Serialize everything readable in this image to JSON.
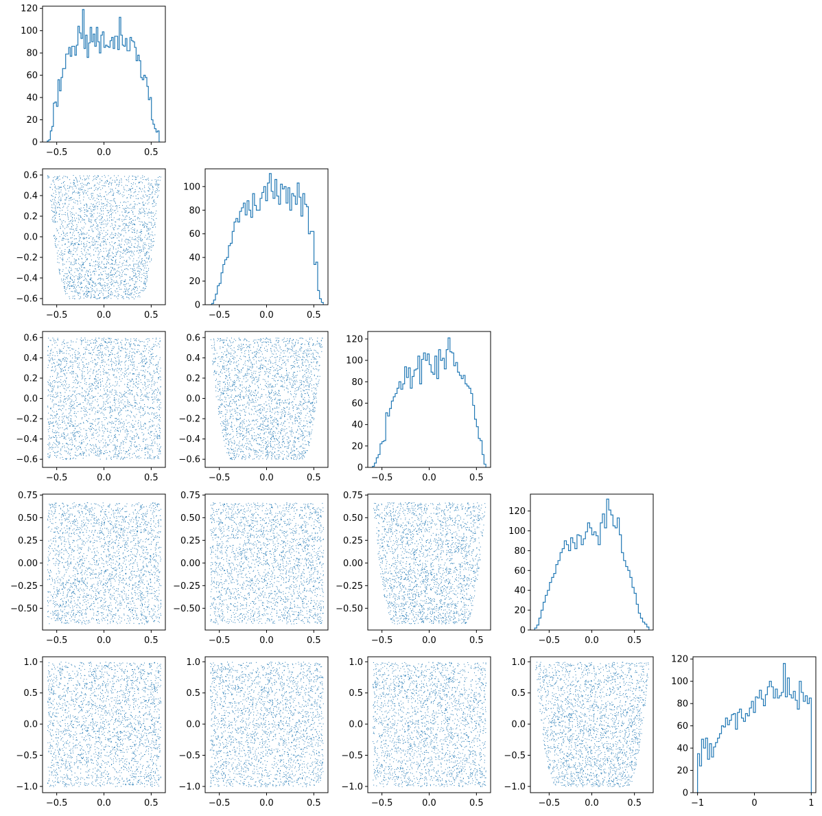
{
  "style": {
    "line_color": "#1f77b4",
    "point_color": "#1f77b4",
    "axes_color": "#000000",
    "background": "#ffffff"
  },
  "chart_data": [
    {
      "type": "histogram",
      "row": 0,
      "col": 0,
      "xlim": [
        -0.65,
        0.65
      ],
      "ylim": [
        0,
        122
      ],
      "xticks": [
        -0.5,
        0.0,
        0.5
      ],
      "yticks": [
        0,
        20,
        40,
        60,
        80,
        100,
        120
      ],
      "x_start": -0.6,
      "x_end": 0.6,
      "counts": [
        1,
        2,
        10,
        14,
        35,
        36,
        32,
        56,
        46,
        58,
        66,
        66,
        79,
        79,
        85,
        77,
        86,
        86,
        78,
        87,
        104,
        98,
        93,
        119,
        84,
        96,
        76,
        89,
        103,
        90,
        97,
        86,
        103,
        90,
        80,
        96,
        99,
        85,
        87,
        86,
        85,
        91,
        94,
        84,
        95,
        95,
        83,
        112,
        96,
        87,
        86,
        93,
        82,
        82,
        94,
        91,
        90,
        85,
        73,
        78,
        73,
        58,
        56,
        60,
        58,
        50,
        38,
        40,
        20,
        16,
        12,
        9,
        10,
        0
      ]
    },
    {
      "type": "histogram",
      "row": 1,
      "col": 1,
      "xlim": [
        -0.65,
        0.65
      ],
      "ylim": [
        0,
        115
      ],
      "xticks": [
        -0.5,
        0.0,
        0.5
      ],
      "yticks": [
        0,
        20,
        40,
        60,
        80,
        100
      ],
      "x_start": -0.6,
      "x_end": 0.6,
      "counts": [
        0,
        1,
        4,
        9,
        16,
        18,
        27,
        34,
        38,
        40,
        50,
        52,
        62,
        70,
        73,
        70,
        79,
        82,
        86,
        76,
        88,
        80,
        74,
        94,
        84,
        80,
        80,
        90,
        95,
        100,
        88,
        103,
        111,
        96,
        90,
        106,
        92,
        85,
        102,
        98,
        100,
        86,
        99,
        80,
        94,
        92,
        85,
        103,
        91,
        75,
        94,
        85,
        83,
        60,
        62,
        62,
        34,
        36,
        12,
        5,
        2
      ]
    },
    {
      "type": "histogram",
      "row": 2,
      "col": 2,
      "xlim": [
        -0.65,
        0.65
      ],
      "ylim": [
        0,
        127
      ],
      "xticks": [
        -0.5,
        0.0,
        0.5
      ],
      "yticks": [
        0,
        20,
        40,
        60,
        80,
        100,
        120
      ],
      "x_start": -0.6,
      "x_end": 0.6,
      "counts": [
        1,
        4,
        9,
        12,
        22,
        24,
        25,
        51,
        48,
        55,
        62,
        66,
        69,
        74,
        80,
        73,
        78,
        94,
        84,
        93,
        74,
        85,
        91,
        92,
        104,
        78,
        101,
        107,
        100,
        106,
        96,
        89,
        87,
        104,
        83,
        110,
        100,
        102,
        92,
        110,
        121,
        108,
        107,
        95,
        98,
        89,
        86,
        83,
        86,
        78,
        76,
        74,
        69,
        58,
        45,
        38,
        27,
        25,
        12,
        3
      ]
    },
    {
      "type": "histogram",
      "row": 3,
      "col": 3,
      "xlim": [
        -0.72,
        0.72
      ],
      "ylim": [
        0,
        137
      ],
      "xticks": [
        -0.5,
        0.0,
        0.5
      ],
      "yticks": [
        0,
        20,
        40,
        60,
        80,
        100,
        120
      ],
      "x_start": -0.67,
      "x_end": 0.67,
      "counts": [
        2,
        5,
        12,
        20,
        28,
        35,
        40,
        48,
        53,
        57,
        66,
        70,
        78,
        82,
        90,
        86,
        80,
        93,
        88,
        82,
        96,
        95,
        86,
        92,
        99,
        108,
        103,
        96,
        99,
        95,
        86,
        108,
        117,
        103,
        132,
        121,
        116,
        105,
        103,
        113,
        96,
        78,
        70,
        64,
        60,
        53,
        43,
        37,
        26,
        17,
        12,
        8,
        6,
        3
      ]
    },
    {
      "type": "histogram",
      "row": 4,
      "col": 4,
      "xlim": [
        -1.08,
        1.08
      ],
      "ylim": [
        0,
        122
      ],
      "xticks": [
        -1,
        0,
        1
      ],
      "yticks": [
        0,
        20,
        40,
        60,
        80,
        100,
        120
      ],
      "x_start": -1.0,
      "x_end": 1.0,
      "counts": [
        35,
        24,
        48,
        40,
        49,
        30,
        44,
        32,
        41,
        45,
        49,
        53,
        60,
        59,
        67,
        61,
        65,
        70,
        71,
        57,
        72,
        75,
        67,
        64,
        71,
        69,
        76,
        82,
        72,
        86,
        85,
        92,
        84,
        78,
        88,
        95,
        100,
        95,
        85,
        93,
        85,
        87,
        90,
        116,
        86,
        103,
        88,
        85,
        91,
        83,
        75,
        100,
        90,
        82,
        87,
        80,
        85
      ]
    },
    {
      "type": "scatter",
      "row": 1,
      "col": 0,
      "xlim": [
        -0.65,
        0.65
      ],
      "ylim": [
        -0.66,
        0.66
      ],
      "xticks": [
        -0.5,
        0.0,
        0.5
      ],
      "yticks": [
        -0.6,
        -0.4,
        -0.2,
        0.0,
        0.2,
        0.4,
        0.6
      ],
      "ytick_decimals": 1,
      "x_range": [
        -0.6,
        0.6
      ],
      "y_range": [
        -0.6,
        0.6
      ],
      "y_shape": "wider_top",
      "n_points": 2400,
      "seed": 11
    },
    {
      "type": "scatter",
      "row": 2,
      "col": 0,
      "xlim": [
        -0.65,
        0.65
      ],
      "ylim": [
        -0.68,
        0.66
      ],
      "xticks": [
        -0.5,
        0.0,
        0.5
      ],
      "yticks": [
        -0.6,
        -0.4,
        -0.2,
        0.0,
        0.2,
        0.4,
        0.6
      ],
      "ytick_decimals": 1,
      "x_range": [
        -0.6,
        0.6
      ],
      "y_range": [
        -0.6,
        0.6
      ],
      "y_shape": "uniform",
      "n_points": 2400,
      "seed": 22
    },
    {
      "type": "scatter",
      "row": 2,
      "col": 1,
      "xlim": [
        -0.65,
        0.65
      ],
      "ylim": [
        -0.68,
        0.66
      ],
      "xticks": [
        -0.5,
        0.0,
        0.5
      ],
      "yticks": [
        -0.6,
        -0.4,
        -0.2,
        0.0,
        0.2,
        0.4,
        0.6
      ],
      "ytick_decimals": 1,
      "x_range": [
        -0.6,
        0.6
      ],
      "y_range": [
        -0.6,
        0.6
      ],
      "y_shape": "wider_top",
      "n_points": 2400,
      "seed": 33
    },
    {
      "type": "scatter",
      "row": 3,
      "col": 0,
      "xlim": [
        -0.65,
        0.65
      ],
      "ylim": [
        -0.74,
        0.76
      ],
      "xticks": [
        -0.5,
        0.0,
        0.5
      ],
      "yticks": [
        -0.5,
        -0.25,
        0.0,
        0.25,
        0.5,
        0.75
      ],
      "ytick_decimals": 2,
      "x_range": [
        -0.6,
        0.6
      ],
      "y_range": [
        -0.67,
        0.67
      ],
      "y_shape": "uniform",
      "n_points": 2400,
      "seed": 44
    },
    {
      "type": "scatter",
      "row": 3,
      "col": 1,
      "xlim": [
        -0.65,
        0.65
      ],
      "ylim": [
        -0.74,
        0.76
      ],
      "xticks": [
        -0.5,
        0.0,
        0.5
      ],
      "yticks": [
        -0.5,
        -0.25,
        0.0,
        0.25,
        0.5,
        0.75
      ],
      "ytick_decimals": 2,
      "x_range": [
        -0.6,
        0.6
      ],
      "y_range": [
        -0.67,
        0.67
      ],
      "y_shape": "uniform",
      "n_points": 2400,
      "seed": 55
    },
    {
      "type": "scatter",
      "row": 3,
      "col": 2,
      "xlim": [
        -0.65,
        0.65
      ],
      "ylim": [
        -0.74,
        0.76
      ],
      "xticks": [
        -0.5,
        0.0,
        0.5
      ],
      "yticks": [
        -0.5,
        -0.25,
        0.0,
        0.25,
        0.5,
        0.75
      ],
      "ytick_decimals": 2,
      "x_range": [
        -0.6,
        0.6
      ],
      "y_range": [
        -0.67,
        0.67
      ],
      "y_shape": "wider_top",
      "n_points": 2400,
      "seed": 66
    },
    {
      "type": "scatter",
      "row": 4,
      "col": 0,
      "xlim": [
        -0.65,
        0.65
      ],
      "ylim": [
        -1.1,
        1.08
      ],
      "xticks": [
        -0.5,
        0.0,
        0.5
      ],
      "yticks": [
        -1.0,
        -0.5,
        0.0,
        0.5,
        1.0
      ],
      "ytick_decimals": 1,
      "x_range": [
        -0.6,
        0.6
      ],
      "y_range": [
        -1.0,
        1.0
      ],
      "y_shape": "uniform",
      "n_points": 2400,
      "seed": 77
    },
    {
      "type": "scatter",
      "row": 4,
      "col": 1,
      "xlim": [
        -0.65,
        0.65
      ],
      "ylim": [
        -1.1,
        1.08
      ],
      "xticks": [
        -0.5,
        0.0,
        0.5
      ],
      "yticks": [
        -1.0,
        -0.5,
        0.0,
        0.5,
        1.0
      ],
      "ytick_decimals": 1,
      "x_range": [
        -0.6,
        0.6
      ],
      "y_range": [
        -1.0,
        1.0
      ],
      "y_shape": "uniform",
      "n_points": 2400,
      "seed": 88
    },
    {
      "type": "scatter",
      "row": 4,
      "col": 2,
      "xlim": [
        -0.65,
        0.65
      ],
      "ylim": [
        -1.1,
        1.08
      ],
      "xticks": [
        -0.5,
        0.0,
        0.5
      ],
      "yticks": [
        -1.0,
        -0.5,
        0.0,
        0.5,
        1.0
      ],
      "ytick_decimals": 1,
      "x_range": [
        -0.6,
        0.6
      ],
      "y_range": [
        -1.0,
        1.0
      ],
      "y_shape": "uniform",
      "n_points": 2400,
      "seed": 99
    },
    {
      "type": "scatter",
      "row": 4,
      "col": 3,
      "xlim": [
        -0.72,
        0.72
      ],
      "ylim": [
        -1.1,
        1.08
      ],
      "xticks": [
        -0.5,
        0.0,
        0.5
      ],
      "yticks": [
        -1.0,
        -0.5,
        0.0,
        0.5,
        1.0
      ],
      "ytick_decimals": 1,
      "x_range": [
        -0.67,
        0.67
      ],
      "y_range": [
        -1.0,
        1.0
      ],
      "y_shape": "wider_top",
      "n_points": 2400,
      "seed": 111
    }
  ]
}
